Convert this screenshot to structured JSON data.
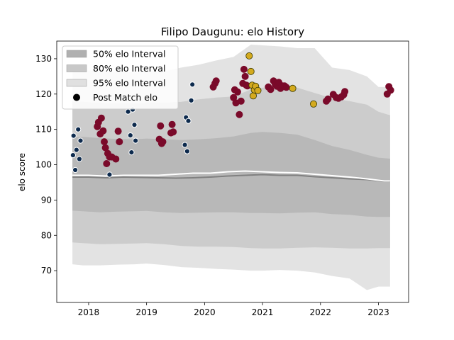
{
  "chart_data": {
    "type": "scatter",
    "title": "Filipo Daugunu: elo History",
    "xlabel": "",
    "ylabel": "elo score",
    "xlim": [
      2017.45,
      2023.52
    ],
    "ylim": [
      61,
      135
    ],
    "x_ticks": [
      2018,
      2019,
      2020,
      2021,
      2022,
      2023
    ],
    "x_tick_labels": [
      "2018",
      "2019",
      "2020",
      "2021",
      "2022",
      "2023"
    ],
    "y_ticks": [
      70,
      80,
      90,
      100,
      110,
      120,
      130
    ],
    "y_tick_labels": [
      "70",
      "80",
      "90",
      "100",
      "110",
      "120",
      "130"
    ],
    "legend_position": "top-left",
    "legend": [
      {
        "label": "50% elo Interval",
        "kind": "patch",
        "color": "#b0b0b0"
      },
      {
        "label": "80% elo Interval",
        "kind": "patch",
        "color": "#c8c8c8"
      },
      {
        "label": "95% elo Interval",
        "kind": "patch",
        "color": "#e0e0e0"
      },
      {
        "label": "Post Match elo",
        "kind": "marker",
        "color": "#000000"
      }
    ],
    "colors": {
      "band95": "#e3e3e3",
      "band80": "#cccccc",
      "band50": "#b8b8b8",
      "median_line": "#808080",
      "mean_line": "#ffffff",
      "point_navy": "#0d2a4d",
      "point_maroon": "#7a0a2a",
      "point_gold": "#d4aa1e"
    },
    "bands": {
      "x": [
        2017.72,
        2017.9,
        2018.2,
        2018.5,
        2018.8,
        2019.0,
        2019.3,
        2019.6,
        2019.9,
        2020.2,
        2020.5,
        2020.8,
        2021.0,
        2021.3,
        2021.6,
        2021.9,
        2022.2,
        2022.5,
        2022.8,
        2023.0,
        2023.2
      ],
      "p975": [
        126.5,
        126.8,
        126.5,
        126.3,
        126.2,
        126.6,
        126.4,
        127.5,
        128.3,
        129.5,
        130.5,
        134.0,
        133.8,
        133.5,
        133.0,
        133.0,
        127.5,
        126.8,
        125.0,
        122.0,
        122.0
      ],
      "p90": [
        117.8,
        117.8,
        117.5,
        117.3,
        117.3,
        117.5,
        117.6,
        117.8,
        118.5,
        119.0,
        119.3,
        121.3,
        121.8,
        122.0,
        121.8,
        120.3,
        118.8,
        118.0,
        117.0,
        115.0,
        114.0
      ],
      "p75": [
        107.8,
        107.9,
        107.5,
        107.3,
        107.2,
        107.4,
        107.2,
        107.0,
        107.2,
        107.5,
        108.0,
        109.0,
        109.3,
        109.0,
        108.5,
        107.0,
        105.3,
        104.2,
        102.8,
        102.0,
        101.7
      ],
      "p25": [
        87.0,
        86.8,
        86.5,
        86.7,
        86.8,
        86.9,
        86.5,
        86.3,
        86.4,
        86.5,
        86.5,
        86.3,
        86.3,
        86.2,
        86.4,
        86.5,
        86.0,
        85.8,
        85.3,
        85.2,
        85.2
      ],
      "p10": [
        78.0,
        77.8,
        77.5,
        77.6,
        77.7,
        77.8,
        77.5,
        77.0,
        76.8,
        76.8,
        76.7,
        76.4,
        76.3,
        76.3,
        76.5,
        76.6,
        76.5,
        76.3,
        76.3,
        76.4,
        76.4
      ],
      "p025": [
        71.8,
        71.5,
        71.5,
        71.7,
        71.8,
        72.0,
        71.6,
        71.0,
        70.8,
        70.5,
        70.3,
        70.0,
        70.0,
        70.2,
        70.0,
        69.5,
        68.5,
        67.8,
        64.5,
        65.5,
        65.5
      ]
    },
    "median_line": {
      "x": [
        2017.72,
        2018.0,
        2018.3,
        2018.6,
        2018.9,
        2019.2,
        2019.5,
        2019.8,
        2020.1,
        2020.4,
        2020.7,
        2021.0,
        2021.3,
        2021.6,
        2021.9,
        2022.2,
        2022.5,
        2022.8,
        2023.1,
        2023.2
      ],
      "y": [
        96.5,
        96.5,
        96.3,
        96.5,
        96.4,
        96.3,
        96.2,
        96.3,
        96.5,
        96.8,
        97.0,
        97.2,
        97.0,
        97.0,
        96.6,
        96.3,
        96.0,
        95.8,
        95.3,
        95.3
      ]
    },
    "mean_line": {
      "x": [
        2017.72,
        2018.0,
        2018.3,
        2018.6,
        2018.9,
        2019.2,
        2019.5,
        2019.8,
        2020.1,
        2020.4,
        2020.7,
        2021.0,
        2021.3,
        2021.6,
        2021.9,
        2022.2,
        2022.5,
        2022.8,
        2023.1,
        2023.2
      ],
      "y": [
        97.0,
        97.0,
        96.8,
        97.0,
        97.0,
        97.0,
        97.3,
        97.6,
        97.6,
        98.0,
        98.2,
        98.0,
        97.8,
        97.7,
        97.3,
        96.9,
        96.5,
        96.0,
        95.4,
        95.4
      ]
    },
    "series": [
      {
        "color_key": "point_navy",
        "x": [
          2017.73,
          2017.74,
          2017.77,
          2017.79,
          2017.82,
          2017.84,
          2017.86,
          2018.36,
          2018.68,
          2018.72,
          2018.74,
          2018.76,
          2018.79,
          2018.81,
          2019.66,
          2019.68,
          2019.7,
          2019.72,
          2019.77,
          2019.79
        ],
        "y": [
          102.7,
          108.2,
          98.5,
          104.2,
          110.0,
          101.6,
          106.8,
          97.2,
          115.0,
          108.3,
          103.5,
          115.6,
          111.3,
          106.8,
          105.6,
          113.4,
          103.8,
          112.4,
          118.2,
          122.7
        ]
      },
      {
        "color_key": "point_maroon",
        "x": [
          2018.15,
          2018.17,
          2018.2,
          2018.22,
          2018.25,
          2018.27,
          2018.29,
          2018.31,
          2018.33,
          2018.36,
          2018.4,
          2018.47,
          2018.51,
          2018.53,
          2019.22,
          2019.24,
          2019.26,
          2019.28,
          2019.42,
          2019.44,
          2019.46,
          2020.15,
          2020.18,
          2020.2,
          2020.5,
          2020.52,
          2020.54,
          2020.57,
          2020.6,
          2020.63,
          2020.66,
          2020.68,
          2020.7,
          2020.72,
          2020.74,
          2021.1,
          2021.14,
          2021.19,
          2021.22,
          2021.25,
          2021.28,
          2021.31,
          2021.35,
          2021.38,
          2021.41,
          2022.1,
          2022.13,
          2022.22,
          2022.27,
          2022.31,
          2022.36,
          2022.4,
          2022.42,
          2023.15,
          2023.18,
          2023.21
        ],
        "y": [
          110.8,
          112.0,
          108.7,
          113.2,
          109.6,
          106.5,
          104.8,
          100.3,
          103.2,
          102.2,
          102.2,
          101.6,
          109.5,
          106.5,
          107.2,
          111.0,
          106.0,
          106.5,
          109.0,
          111.4,
          109.3,
          122.0,
          123.0,
          123.7,
          119.0,
          121.2,
          117.5,
          120.6,
          114.2,
          118.0,
          123.0,
          127.0,
          125.0,
          122.5,
          122.3,
          122.0,
          121.3,
          123.7,
          122.7,
          122.2,
          123.3,
          121.6,
          122.3,
          122.3,
          121.9,
          118.0,
          118.6,
          119.9,
          119.0,
          118.8,
          119.2,
          119.8,
          120.7,
          120.0,
          122.1,
          121.1
        ]
      },
      {
        "color_key": "point_gold",
        "x": [
          2020.77,
          2020.8,
          2020.82,
          2020.84,
          2020.86,
          2020.88,
          2020.92,
          2021.52,
          2021.88
        ],
        "y": [
          130.8,
          126.4,
          122.5,
          119.5,
          121.2,
          122.2,
          121.0,
          121.6,
          117.2
        ]
      }
    ]
  }
}
